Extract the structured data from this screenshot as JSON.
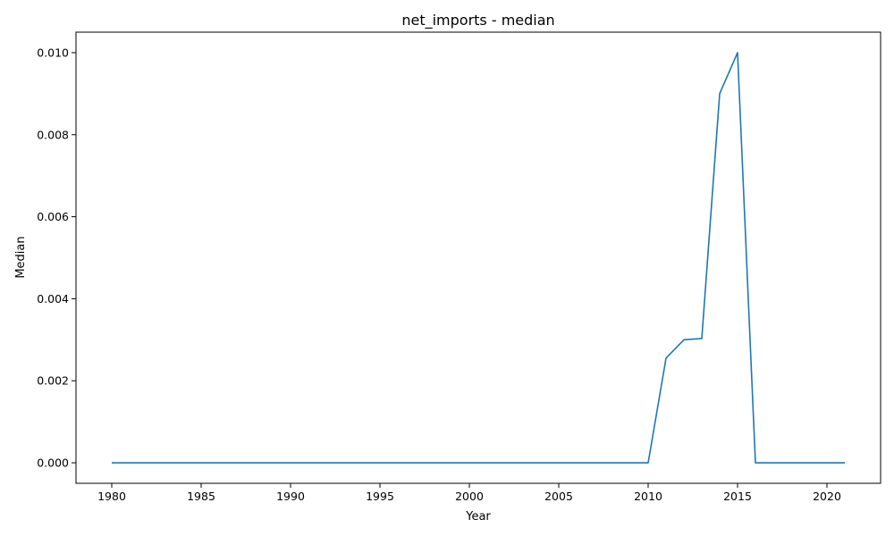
{
  "chart_data": {
    "type": "line",
    "title": "net_imports - median",
    "xlabel": "Year",
    "ylabel": "Median",
    "xlim": [
      1978,
      2023
    ],
    "ylim": [
      -0.0005,
      0.0105
    ],
    "grid": false,
    "x_ticks": [
      1980,
      1985,
      1990,
      1995,
      2000,
      2005,
      2010,
      2015,
      2020
    ],
    "y_ticks": [
      0.0,
      0.002,
      0.004,
      0.006,
      0.008,
      0.01
    ],
    "y_tick_labels": [
      "0.000",
      "0.002",
      "0.004",
      "0.006",
      "0.008",
      "0.010"
    ],
    "line_color": "#1f77b4",
    "x": [
      1980,
      1981,
      1982,
      1983,
      1984,
      1985,
      1986,
      1987,
      1988,
      1989,
      1990,
      1991,
      1992,
      1993,
      1994,
      1995,
      1996,
      1997,
      1998,
      1999,
      2000,
      2001,
      2002,
      2003,
      2004,
      2005,
      2006,
      2007,
      2008,
      2009,
      2010,
      2011,
      2012,
      2013,
      2014,
      2015,
      2016,
      2017,
      2018,
      2019,
      2020,
      2021
    ],
    "y": [
      0,
      0,
      0,
      0,
      0,
      0,
      0,
      0,
      0,
      0,
      0,
      0,
      0,
      0,
      0,
      0,
      0,
      0,
      0,
      0,
      0,
      0,
      0,
      0,
      0,
      0,
      0,
      0,
      0,
      0,
      0,
      0.00255,
      0.003,
      0.00303,
      0.009,
      0.01,
      0,
      0,
      0,
      0,
      0,
      0
    ]
  }
}
